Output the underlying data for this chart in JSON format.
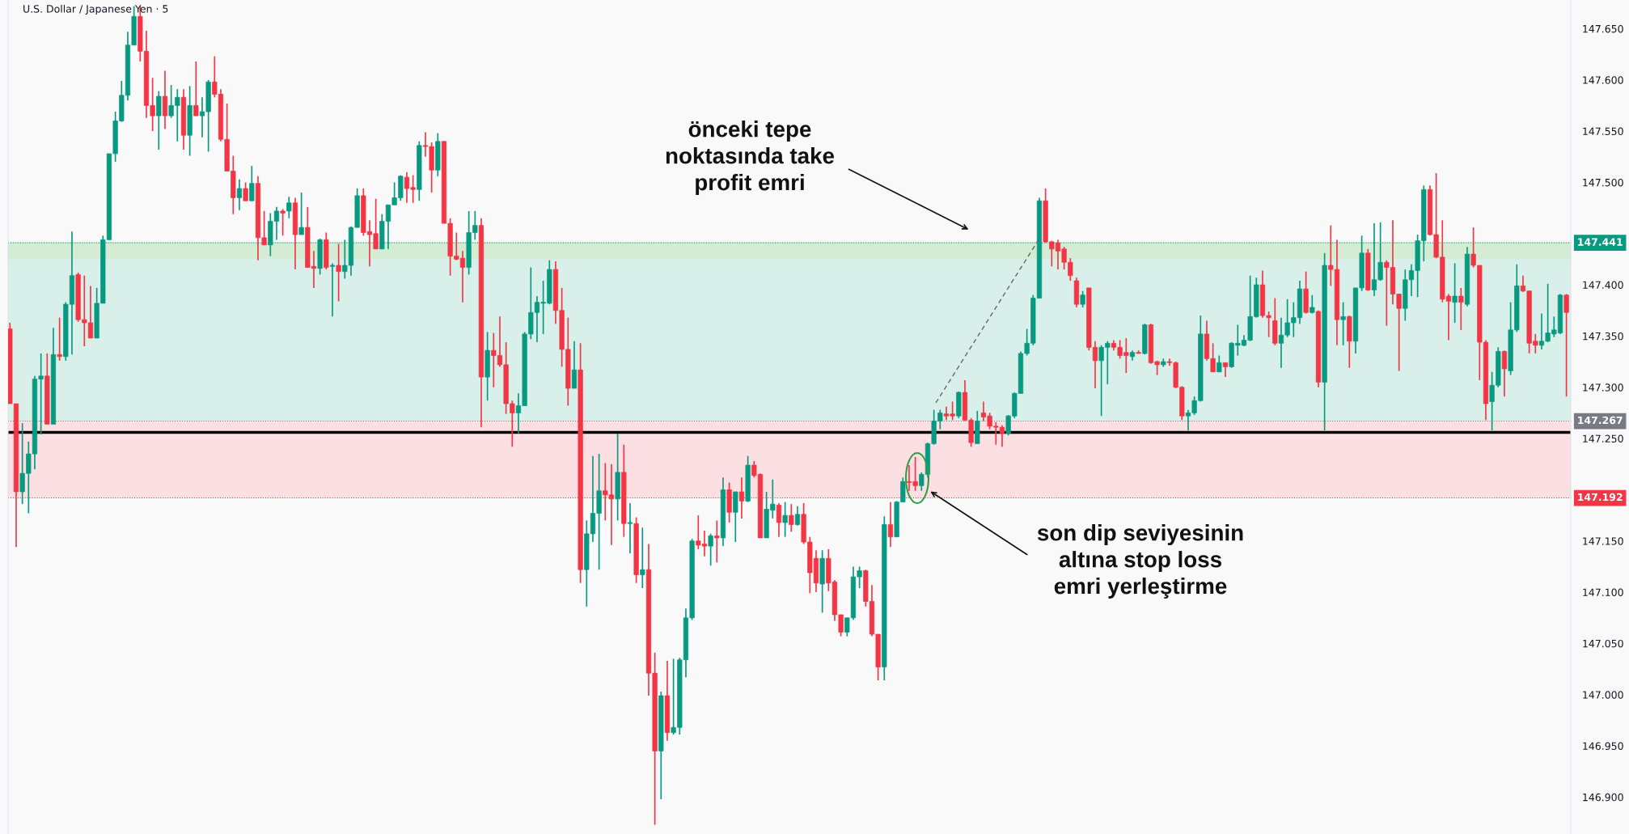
{
  "chart_data": {
    "type": "candlestick",
    "title": "U.S. Dollar / Japanese Yen · 5",
    "annotations": [
      "önceki tepe\nnoktasında take\nprofit emri",
      "son dip seviyesinin\naltına stop loss\nemri yerleştirme"
    ],
    "categories": [
      null,
      null,
      null,
      null,
      null,
      null,
      null,
      null,
      null,
      null,
      null,
      null,
      null,
      null,
      null,
      null,
      null,
      null,
      null,
      null,
      null,
      null,
      null,
      null,
      null,
      null,
      null,
      null,
      null,
      null,
      null,
      null,
      null,
      null,
      null,
      null,
      null,
      null,
      null,
      null,
      null,
      null,
      null,
      null,
      null,
      null,
      null,
      null,
      null,
      null,
      null,
      null,
      null,
      null,
      null,
      null,
      null,
      null,
      null,
      null,
      null,
      null,
      null,
      null,
      null,
      null,
      null,
      null,
      null,
      null,
      null,
      null,
      null,
      null,
      null,
      null,
      null,
      null,
      null,
      null,
      null,
      null,
      null,
      null,
      null,
      null,
      null,
      null,
      null,
      null,
      null,
      null,
      null,
      null,
      null,
      null,
      null,
      null,
      null,
      null,
      null,
      null,
      null,
      null,
      null,
      null,
      null,
      null,
      null,
      null,
      null,
      null,
      null,
      null,
      null,
      null,
      null,
      null,
      null,
      null,
      null,
      null,
      null,
      null,
      null,
      null,
      null,
      null,
      null,
      null,
      null,
      null,
      null,
      null,
      null,
      null,
      null,
      null,
      null,
      null,
      null,
      null,
      null,
      null,
      null,
      null,
      null,
      null,
      null,
      null,
      null,
      null,
      null,
      null,
      null,
      null,
      null,
      null,
      null,
      null,
      null,
      null,
      null,
      null,
      null,
      null,
      null,
      null,
      null,
      null,
      null,
      null,
      null,
      null,
      null,
      null,
      null,
      null,
      null,
      null,
      null,
      null,
      null,
      null,
      null,
      null,
      null,
      null,
      null,
      null,
      null,
      null,
      null,
      null,
      null,
      null,
      null,
      null,
      null,
      null,
      null,
      null,
      null,
      null,
      null,
      null,
      null,
      null,
      null,
      null,
      null,
      null,
      null,
      null,
      null,
      null,
      null,
      null,
      null,
      null,
      null,
      null,
      null,
      null,
      null,
      null,
      null,
      null,
      null,
      null,
      null,
      null,
      null,
      null,
      null,
      null,
      null,
      null,
      null,
      null,
      null,
      null,
      null,
      null,
      null,
      null,
      null,
      null,
      null,
      null,
      null,
      null
    ],
    "ohlc": [
      [
        147.357,
        147.363,
        147.284,
        147.284
      ],
      [
        147.284,
        147.284,
        147.144,
        147.198
      ],
      [
        147.198,
        147.265,
        147.186,
        147.216
      ],
      [
        147.216,
        147.247,
        147.177,
        147.235
      ],
      [
        147.235,
        147.311,
        147.22,
        147.308
      ],
      [
        147.308,
        147.333,
        147.254,
        147.311
      ],
      [
        147.311,
        147.333,
        147.264,
        147.264
      ],
      [
        147.264,
        147.358,
        147.264,
        147.332
      ],
      [
        147.332,
        147.368,
        147.326,
        147.33
      ],
      [
        147.33,
        147.383,
        147.326,
        147.381
      ],
      [
        147.381,
        147.452,
        147.332,
        147.409
      ],
      [
        147.41,
        147.412,
        147.364,
        147.366
      ],
      [
        147.366,
        147.409,
        147.34,
        147.363
      ],
      [
        147.363,
        147.399,
        147.348,
        147.348
      ],
      [
        147.348,
        147.397,
        147.348,
        147.382
      ],
      [
        147.382,
        147.448,
        147.382,
        147.444
      ],
      [
        147.444,
        147.528,
        147.444,
        147.528
      ],
      [
        147.528,
        147.569,
        147.52,
        147.56
      ],
      [
        147.56,
        147.599,
        147.559,
        147.585
      ],
      [
        147.585,
        147.647,
        147.58,
        147.634
      ],
      [
        147.634,
        147.672,
        147.634,
        147.662
      ],
      [
        147.662,
        147.672,
        147.618,
        147.628
      ],
      [
        147.628,
        147.648,
        147.563,
        147.575
      ],
      [
        147.575,
        147.602,
        147.55,
        147.565
      ],
      [
        147.565,
        147.589,
        147.532,
        147.584
      ],
      [
        147.584,
        147.609,
        147.552,
        147.565
      ],
      [
        147.565,
        147.595,
        147.563,
        147.575
      ],
      [
        147.575,
        147.591,
        147.54,
        147.583
      ],
      [
        147.583,
        147.591,
        147.532,
        147.546
      ],
      [
        147.546,
        147.594,
        147.526,
        147.575
      ],
      [
        147.575,
        147.618,
        147.565,
        147.565
      ],
      [
        147.565,
        147.583,
        147.544,
        147.569
      ],
      [
        147.569,
        147.6,
        147.53,
        147.598
      ],
      [
        147.598,
        147.623,
        147.583,
        147.586
      ],
      [
        147.586,
        147.591,
        147.54,
        147.542
      ],
      [
        147.542,
        147.577,
        147.511,
        147.511
      ],
      [
        147.511,
        147.526,
        147.469,
        147.485
      ],
      [
        147.485,
        147.503,
        147.473,
        147.494
      ],
      [
        147.494,
        147.5,
        147.482,
        147.482
      ],
      [
        147.482,
        147.516,
        147.482,
        147.499
      ],
      [
        147.499,
        147.506,
        147.424,
        147.446
      ],
      [
        147.446,
        147.472,
        147.439,
        147.439
      ],
      [
        147.439,
        147.47,
        147.428,
        147.462
      ],
      [
        147.462,
        147.476,
        147.444,
        147.472
      ],
      [
        147.472,
        147.474,
        147.448,
        147.47
      ],
      [
        147.472,
        147.486,
        147.465,
        147.48
      ],
      [
        147.48,
        147.485,
        147.415,
        147.449
      ],
      [
        147.449,
        147.49,
        147.449,
        147.456
      ],
      [
        147.456,
        147.476,
        147.417,
        147.417
      ],
      [
        147.418,
        147.433,
        147.397,
        147.416
      ],
      [
        147.416,
        147.445,
        147.41,
        147.444
      ],
      [
        147.444,
        147.451,
        147.415,
        147.417
      ],
      [
        147.418,
        147.421,
        147.369,
        147.419
      ],
      [
        147.419,
        147.44,
        147.384,
        147.413
      ],
      [
        147.413,
        147.444,
        147.406,
        147.419
      ],
      [
        147.419,
        147.457,
        147.409,
        147.456
      ],
      [
        147.456,
        147.494,
        147.456,
        147.487
      ],
      [
        147.487,
        147.494,
        147.448,
        147.451
      ],
      [
        147.452,
        147.463,
        147.418,
        147.449
      ],
      [
        147.45,
        147.484,
        147.435,
        147.435
      ],
      [
        147.435,
        147.469,
        147.435,
        147.462
      ],
      [
        147.462,
        147.478,
        147.435,
        147.478
      ],
      [
        147.478,
        147.5,
        147.478,
        147.485
      ],
      [
        147.485,
        147.507,
        147.482,
        147.506
      ],
      [
        147.505,
        147.51,
        147.48,
        147.494
      ],
      [
        147.495,
        147.507,
        147.48,
        147.493
      ],
      [
        147.493,
        147.54,
        147.482,
        147.536
      ],
      [
        147.536,
        147.549,
        147.525,
        147.535
      ],
      [
        147.535,
        147.539,
        147.49,
        147.512
      ],
      [
        147.512,
        147.548,
        147.506,
        147.54
      ],
      [
        147.54,
        147.54,
        147.46,
        147.46
      ],
      [
        147.46,
        147.465,
        147.409,
        147.428
      ],
      [
        147.428,
        147.451,
        147.424,
        147.425
      ],
      [
        147.426,
        147.433,
        147.383,
        147.417
      ],
      [
        147.417,
        147.472,
        147.41,
        147.451
      ],
      [
        147.451,
        147.472,
        147.444,
        147.458
      ],
      [
        147.458,
        147.465,
        147.261,
        147.31
      ],
      [
        147.31,
        147.354,
        147.287,
        147.336
      ],
      [
        147.336,
        147.353,
        147.3,
        147.331
      ],
      [
        147.331,
        147.369,
        147.32,
        147.322
      ],
      [
        147.322,
        147.344,
        147.274,
        147.284
      ],
      [
        147.284,
        147.287,
        147.242,
        147.275
      ],
      [
        147.275,
        147.294,
        147.255,
        147.282
      ],
      [
        147.282,
        147.354,
        147.282,
        147.352
      ],
      [
        147.352,
        147.417,
        147.347,
        147.373
      ],
      [
        147.373,
        147.389,
        147.344,
        147.383
      ],
      [
        147.382,
        147.404,
        147.352,
        147.383
      ],
      [
        147.382,
        147.424,
        147.381,
        147.415
      ],
      [
        147.415,
        147.423,
        147.362,
        147.375
      ],
      [
        147.375,
        147.397,
        147.32,
        147.337
      ],
      [
        147.337,
        147.368,
        147.282,
        147.299
      ],
      [
        147.299,
        147.345,
        147.299,
        147.317
      ],
      [
        147.317,
        147.343,
        147.109,
        147.122
      ],
      [
        147.122,
        147.17,
        147.086,
        147.157
      ],
      [
        147.157,
        147.233,
        147.149,
        147.177
      ],
      [
        147.177,
        147.235,
        147.122,
        147.199
      ],
      [
        147.199,
        147.226,
        147.17,
        147.195
      ],
      [
        147.195,
        147.225,
        147.146,
        147.191
      ],
      [
        147.191,
        147.255,
        147.17,
        147.217
      ],
      [
        147.217,
        147.244,
        147.154,
        147.167
      ],
      [
        147.167,
        147.187,
        147.138,
        147.168
      ],
      [
        147.167,
        147.173,
        147.109,
        147.117
      ],
      [
        147.117,
        147.163,
        147.104,
        147.122
      ],
      [
        147.122,
        147.147,
        146.999,
        147.021
      ],
      [
        147.021,
        147.041,
        146.873,
        146.945
      ],
      [
        146.945,
        147.003,
        146.898,
        146.999
      ],
      [
        146.999,
        147.033,
        146.955,
        146.963
      ],
      [
        146.963,
        147.035,
        146.961,
        146.968
      ],
      [
        146.968,
        147.036,
        146.961,
        147.034
      ],
      [
        147.034,
        147.084,
        147.017,
        147.075
      ],
      [
        147.075,
        147.152,
        147.073,
        147.15
      ],
      [
        147.15,
        147.175,
        147.142,
        147.146
      ],
      [
        147.147,
        147.16,
        147.135,
        147.145
      ],
      [
        147.145,
        147.157,
        147.126,
        147.155
      ],
      [
        147.155,
        147.17,
        147.129,
        147.153
      ],
      [
        147.153,
        147.212,
        147.145,
        147.2
      ],
      [
        147.2,
        147.207,
        147.168,
        147.178
      ],
      [
        147.178,
        147.198,
        147.149,
        147.198
      ],
      [
        147.198,
        147.212,
        147.172,
        147.189
      ],
      [
        147.189,
        147.233,
        147.188,
        147.224
      ],
      [
        147.224,
        147.228,
        147.212,
        147.214
      ],
      [
        147.215,
        147.216,
        147.153,
        147.153
      ],
      [
        147.153,
        147.198,
        147.153,
        147.181
      ],
      [
        147.18,
        147.21,
        147.172,
        147.186
      ],
      [
        147.185,
        147.187,
        147.154,
        147.168
      ],
      [
        147.168,
        147.188,
        147.154,
        147.175
      ],
      [
        147.175,
        147.186,
        147.159,
        147.166
      ],
      [
        147.166,
        147.184,
        147.165,
        147.176
      ],
      [
        147.176,
        147.187,
        147.147,
        147.149
      ],
      [
        147.149,
        147.154,
        147.099,
        147.119
      ],
      [
        147.133,
        147.141,
        147.1,
        147.109
      ],
      [
        147.108,
        147.141,
        147.08,
        147.133
      ],
      [
        147.133,
        147.142,
        147.101,
        147.109
      ],
      [
        147.11,
        147.112,
        147.072,
        147.078
      ],
      [
        147.078,
        147.078,
        147.057,
        147.061
      ],
      [
        147.061,
        147.075,
        147.057,
        147.075
      ],
      [
        147.075,
        147.125,
        147.073,
        147.115
      ],
      [
        147.115,
        147.125,
        147.104,
        147.121
      ],
      [
        147.121,
        147.122,
        147.086,
        147.091
      ],
      [
        147.091,
        147.107,
        147.057,
        147.059
      ],
      [
        147.059,
        147.059,
        147.014,
        147.027
      ],
      [
        147.027,
        147.174,
        147.014,
        147.166
      ],
      [
        147.166,
        147.188,
        147.144,
        147.154
      ],
      [
        147.154,
        147.189,
        147.154,
        147.188
      ],
      [
        147.188,
        147.212,
        147.188,
        147.208
      ],
      [
        147.208,
        147.224,
        147.199,
        147.207
      ],
      [
        147.208,
        147.232,
        147.199,
        147.204
      ],
      [
        147.204,
        147.217,
        147.199,
        147.215
      ],
      [
        147.215,
        147.246,
        147.212,
        147.245
      ],
      [
        147.245,
        147.278,
        147.244,
        147.267
      ],
      [
        147.267,
        147.278,
        147.259,
        147.275
      ],
      [
        147.274,
        147.281,
        147.268,
        147.272
      ],
      [
        147.274,
        147.286,
        147.268,
        147.272
      ],
      [
        147.272,
        147.296,
        147.27,
        147.295
      ],
      [
        147.295,
        147.307,
        147.267,
        147.268
      ],
      [
        147.268,
        147.27,
        147.242,
        147.246
      ],
      [
        147.245,
        147.277,
        147.245,
        147.267
      ],
      [
        147.275,
        147.286,
        147.267,
        147.271
      ],
      [
        147.272,
        147.275,
        147.259,
        147.262
      ],
      [
        147.262,
        147.266,
        147.244,
        147.261
      ],
      [
        147.261,
        147.263,
        147.242,
        147.255
      ],
      [
        147.255,
        147.273,
        147.253,
        147.272
      ],
      [
        147.272,
        147.295,
        147.27,
        147.294
      ],
      [
        147.294,
        147.335,
        147.294,
        147.333
      ],
      [
        147.333,
        147.357,
        147.331,
        147.343
      ],
      [
        147.343,
        147.39,
        147.341,
        147.387
      ],
      [
        147.387,
        147.485,
        147.387,
        147.482
      ],
      [
        147.482,
        147.494,
        147.441,
        147.442
      ],
      [
        147.442,
        147.443,
        147.418,
        147.435
      ],
      [
        147.441,
        147.444,
        147.415,
        147.433
      ],
      [
        147.435,
        147.437,
        147.415,
        147.422
      ],
      [
        147.422,
        147.426,
        147.404,
        147.409
      ],
      [
        147.404,
        147.407,
        147.378,
        147.381
      ],
      [
        147.381,
        147.394,
        147.378,
        147.39
      ],
      [
        147.397,
        147.397,
        147.336,
        147.339
      ],
      [
        147.339,
        147.345,
        147.299,
        147.326
      ],
      [
        147.326,
        147.341,
        147.272,
        147.339
      ],
      [
        147.339,
        147.345,
        147.303,
        147.343
      ],
      [
        147.343,
        147.346,
        147.336,
        147.339
      ],
      [
        147.339,
        147.346,
        147.328,
        147.331
      ],
      [
        147.334,
        147.348,
        147.314,
        147.331
      ],
      [
        147.33,
        147.336,
        147.326,
        147.334
      ],
      [
        147.334,
        147.336,
        147.333,
        147.333
      ],
      [
        147.333,
        147.362,
        147.332,
        147.361
      ],
      [
        147.361,
        147.362,
        147.323,
        147.324
      ],
      [
        147.325,
        147.326,
        147.312,
        147.322
      ],
      [
        147.322,
        147.328,
        147.32,
        147.325
      ],
      [
        147.325,
        147.328,
        147.321,
        147.324
      ],
      [
        147.324,
        147.325,
        147.299,
        147.3
      ],
      [
        147.3,
        147.301,
        147.268,
        147.272
      ],
      [
        147.272,
        147.278,
        147.258,
        147.275
      ],
      [
        147.275,
        147.291,
        147.273,
        147.287
      ],
      [
        147.287,
        147.37,
        147.286,
        147.352
      ],
      [
        147.352,
        147.365,
        147.326,
        147.328
      ],
      [
        147.328,
        147.343,
        147.315,
        147.315
      ],
      [
        147.315,
        147.331,
        147.315,
        147.324
      ],
      [
        147.324,
        147.324,
        147.31,
        147.32
      ],
      [
        147.32,
        147.344,
        147.319,
        147.343
      ],
      [
        147.341,
        147.361,
        147.331,
        147.343
      ],
      [
        147.341,
        147.351,
        147.34,
        147.346
      ],
      [
        147.346,
        147.409,
        147.345,
        147.369
      ],
      [
        147.369,
        147.407,
        147.368,
        147.4
      ],
      [
        147.4,
        147.414,
        147.368,
        147.37
      ],
      [
        147.37,
        147.374,
        147.349,
        147.368
      ],
      [
        147.365,
        147.387,
        147.341,
        147.343
      ],
      [
        147.343,
        147.368,
        147.319,
        147.351
      ],
      [
        147.351,
        147.386,
        147.349,
        147.363
      ],
      [
        147.363,
        147.383,
        147.349,
        147.368
      ],
      [
        147.368,
        147.404,
        147.362,
        147.396
      ],
      [
        147.396,
        147.413,
        147.372,
        147.373
      ],
      [
        147.373,
        147.39,
        147.372,
        147.378
      ],
      [
        147.374,
        147.375,
        147.3,
        147.305
      ],
      [
        147.305,
        147.431,
        147.258,
        147.419
      ],
      [
        147.419,
        147.458,
        147.399,
        147.415
      ],
      [
        147.415,
        147.444,
        147.341,
        147.366
      ],
      [
        147.366,
        147.383,
        147.341,
        147.369
      ],
      [
        147.369,
        147.37,
        147.319,
        147.345
      ],
      [
        147.345,
        147.397,
        147.333,
        147.397
      ],
      [
        147.397,
        147.448,
        147.394,
        147.431
      ],
      [
        147.431,
        147.435,
        147.394,
        147.395
      ],
      [
        147.395,
        147.46,
        147.389,
        147.405
      ],
      [
        147.405,
        147.461,
        147.404,
        147.422
      ],
      [
        147.422,
        147.424,
        147.36,
        147.417
      ],
      [
        147.417,
        147.463,
        147.381,
        147.391
      ],
      [
        147.391,
        147.391,
        147.316,
        147.377
      ],
      [
        147.377,
        147.415,
        147.365,
        147.405
      ],
      [
        147.405,
        147.42,
        147.389,
        147.414
      ],
      [
        147.414,
        147.449,
        147.388,
        147.443
      ],
      [
        147.443,
        147.497,
        147.423,
        147.493
      ],
      [
        147.493,
        147.497,
        147.448,
        147.449
      ],
      [
        147.449,
        147.509,
        147.426,
        147.427
      ],
      [
        147.427,
        147.463,
        147.383,
        147.386
      ],
      [
        147.389,
        147.391,
        147.346,
        147.384
      ],
      [
        147.383,
        147.421,
        147.363,
        147.389
      ],
      [
        147.389,
        147.397,
        147.356,
        147.383
      ],
      [
        147.381,
        147.437,
        147.379,
        147.43
      ],
      [
        147.43,
        147.456,
        147.417,
        147.419
      ],
      [
        147.419,
        147.419,
        147.307,
        147.344
      ],
      [
        147.344,
        147.346,
        147.268,
        147.284
      ],
      [
        147.286,
        147.315,
        147.258,
        147.302
      ],
      [
        147.302,
        147.339,
        147.3,
        147.335
      ],
      [
        147.335,
        147.336,
        147.291,
        147.318
      ],
      [
        147.316,
        147.383,
        147.312,
        147.356
      ],
      [
        147.356,
        147.42,
        147.354,
        147.399
      ],
      [
        147.399,
        147.409,
        147.393,
        147.394
      ],
      [
        147.394,
        147.394,
        147.333,
        147.343
      ],
      [
        147.345,
        147.352,
        147.333,
        147.341
      ],
      [
        147.341,
        147.372,
        147.337,
        147.345
      ],
      [
        147.345,
        147.401,
        147.344,
        147.353
      ],
      [
        147.352,
        147.369,
        147.349,
        147.356
      ],
      [
        147.353,
        147.391,
        147.352,
        147.39
      ],
      [
        147.39,
        147.391,
        147.291,
        147.373
      ]
    ],
    "ylim": [
      146.864,
      147.678
    ],
    "yticks": [
      {
        "value": 146.9,
        "label": "146.900"
      },
      {
        "value": 146.95,
        "label": "146.950"
      },
      {
        "value": 147.0,
        "label": "147.000"
      },
      {
        "value": 147.05,
        "label": "147.050"
      },
      {
        "value": 147.1,
        "label": "147.100"
      },
      {
        "value": 147.15,
        "label": "147.150"
      },
      {
        "value": 147.25,
        "label": "147.250"
      },
      {
        "value": 147.3,
        "label": "147.300"
      },
      {
        "value": 147.35,
        "label": "147.350"
      },
      {
        "value": 147.4,
        "label": "147.400"
      },
      {
        "value": 147.5,
        "label": "147.500"
      },
      {
        "value": 147.55,
        "label": "147.550"
      },
      {
        "value": 147.6,
        "label": "147.600"
      },
      {
        "value": 147.65,
        "label": "147.650"
      }
    ],
    "tick_labels": "y",
    "bands": [
      {
        "axis": "y",
        "from": 147.267,
        "to": 147.441,
        "color": "#d9efe9"
      },
      {
        "axis": "y",
        "from": 147.192,
        "to": 147.267,
        "color": "#fbdfe2"
      },
      {
        "axis": "y",
        "from": 147.425,
        "to": 147.442,
        "color": "#d4ebd4"
      }
    ],
    "ref_lines": [
      {
        "axis": "y",
        "value": 147.256,
        "color": "#000000",
        "line_style": "solid"
      },
      {
        "axis": "y",
        "value": 147.441,
        "label": "147.441",
        "color": "#089981",
        "line_style": "dotted"
      },
      {
        "axis": "y",
        "value": 147.267,
        "label": "147.267",
        "color": "#787b86",
        "line_style": "dotted"
      },
      {
        "axis": "y",
        "value": 147.192,
        "label": "147.192",
        "color": "#f23645",
        "line_style": "dotted"
      }
    ]
  }
}
